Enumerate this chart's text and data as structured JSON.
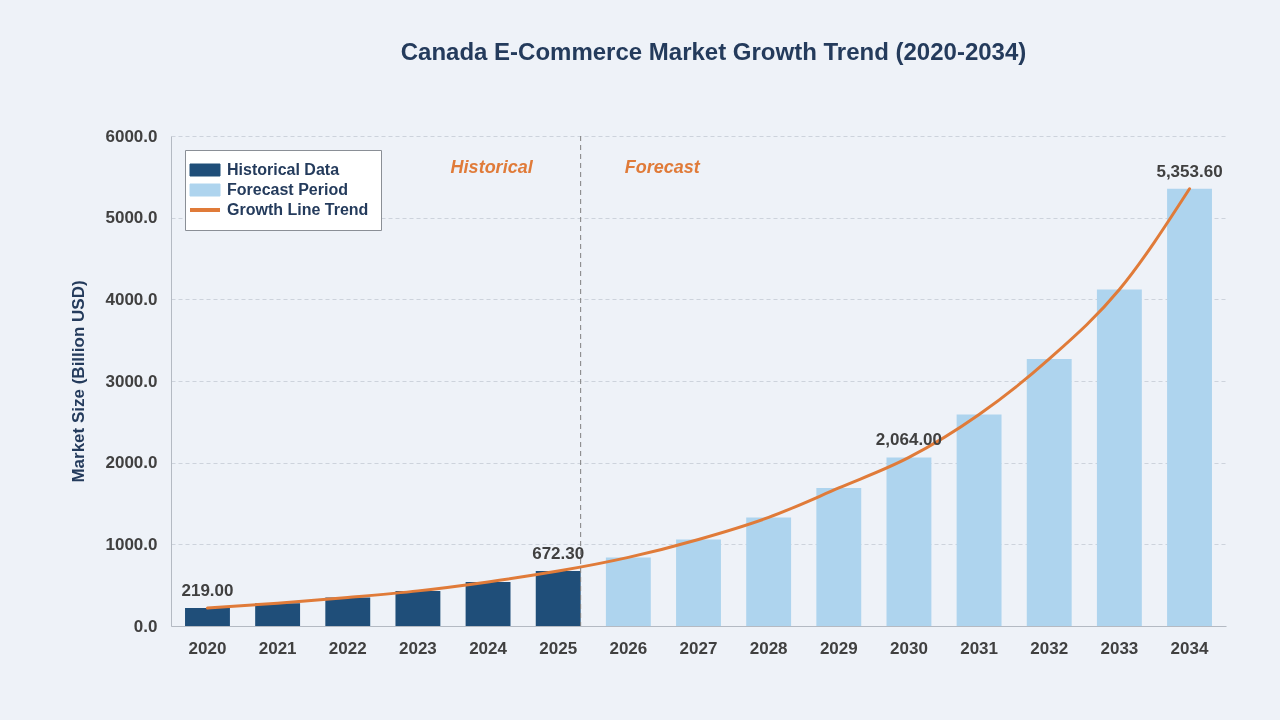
{
  "chart_data": {
    "type": "bar",
    "title": "Canada E-Commerce Market Growth Trend (2020-2034)",
    "ylabel": "Market Size (Billion USD)",
    "categories": [
      "2020",
      "2021",
      "2022",
      "2023",
      "2024",
      "2025",
      "2026",
      "2027",
      "2028",
      "2029",
      "2030",
      "2031",
      "2032",
      "2033",
      "2034"
    ],
    "series": [
      {
        "name": "Historical Data",
        "color": "#1f4e79",
        "values": [
          219,
          280,
          350,
          430,
          540,
          672.3,
          null,
          null,
          null,
          null,
          null,
          null,
          null,
          null,
          null
        ],
        "value_labels": [
          "219.00",
          null,
          null,
          null,
          null,
          "672.30",
          null,
          null,
          null,
          null,
          null,
          null,
          null,
          null,
          null
        ]
      },
      {
        "name": "Forecast Period",
        "color": "#aed4ee",
        "values": [
          null,
          null,
          null,
          null,
          null,
          null,
          840,
          1060,
          1330,
          1690,
          2064,
          2590,
          3270,
          4120,
          5353.6
        ],
        "value_labels": [
          null,
          null,
          null,
          null,
          null,
          null,
          null,
          null,
          null,
          null,
          "2,064.00",
          null,
          null,
          null,
          "5,353.60"
        ]
      },
      {
        "name": "Growth Line Trend",
        "type": "line",
        "color": "#e07b39",
        "values": [
          219,
          280,
          350,
          430,
          540,
          672.3,
          840,
          1060,
          1330,
          1690,
          2064,
          2590,
          3270,
          4120,
          5353.6
        ]
      }
    ],
    "ylim": [
      0,
      6000
    ],
    "yticks": [
      {
        "value": 0,
        "label": "0.0"
      },
      {
        "value": 1000,
        "label": "1000.0"
      },
      {
        "value": 2000,
        "label": "2000.0"
      },
      {
        "value": 3000,
        "label": "3000.0"
      },
      {
        "value": 4000,
        "label": "4000.0"
      },
      {
        "value": 5000,
        "label": "5000.0"
      },
      {
        "value": 6000,
        "label": "6000.0"
      }
    ],
    "grid": "y",
    "legend": "top left",
    "ref_lines": [
      {
        "axis": "x",
        "value": "2025",
        "line_style": "dashed",
        "color": "#808080"
      }
    ],
    "annotations": [
      "Historical",
      "Forecast"
    ]
  }
}
